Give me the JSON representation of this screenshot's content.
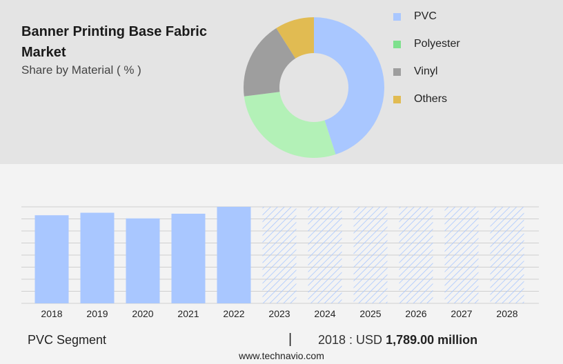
{
  "header": {
    "title": "Banner Printing Base Fabric Market",
    "subtitle": "Share by Material ( % )"
  },
  "colors": {
    "pvc": "#a9c7ff",
    "polyester": "#b3f1b7",
    "vinyl": "#9e9e9e",
    "others": "#e1bb52",
    "legend_polyester": "#7ee08d",
    "bar": "#a9c7ff",
    "forecast_hatch": "#a9c7ff",
    "grid": "#cfcfcf"
  },
  "chart_data": [
    {
      "type": "pie",
      "variant": "donut",
      "title": "Share by Material ( % )",
      "legend_position": "right",
      "slices": [
        {
          "name": "PVC",
          "value": 45
        },
        {
          "name": "Polyester",
          "value": 28
        },
        {
          "name": "Vinyl",
          "value": 18
        },
        {
          "name": "Others",
          "value": 9
        }
      ]
    },
    {
      "type": "bar",
      "series_name": "PVC Segment",
      "categories": [
        "2018",
        "2019",
        "2020",
        "2021",
        "2022",
        "2023",
        "2024",
        "2025",
        "2026",
        "2027",
        "2028"
      ],
      "values": [
        1789,
        1840,
        1725,
        1820,
        1960,
        null,
        null,
        null,
        null,
        null,
        null
      ],
      "forecast_categories": [
        "2023",
        "2024",
        "2025",
        "2026",
        "2027",
        "2028"
      ],
      "ylim": [
        0,
        1960
      ],
      "grid": true,
      "y_tick_labels_shown": false
    }
  ],
  "footer": {
    "segment": "PVC Segment",
    "divider": "|",
    "year_label": "2018 : USD ",
    "value": "1,789.00 million",
    "source": "www.technavio.com"
  }
}
